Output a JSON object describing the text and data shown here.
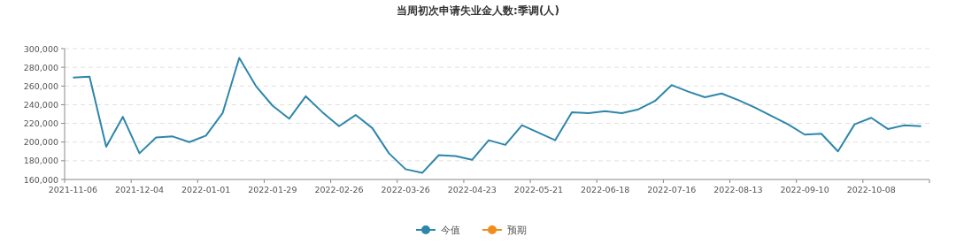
{
  "chart_data": {
    "type": "line",
    "title": "当周初次申请失业金人数:季调(人)",
    "categories": [
      "2021-11-06",
      null,
      null,
      null,
      "2021-12-04",
      null,
      null,
      null,
      "2022-01-01",
      null,
      null,
      null,
      "2022-01-29",
      null,
      null,
      null,
      "2022-02-26",
      null,
      null,
      null,
      "2022-03-26",
      null,
      null,
      null,
      "2022-04-23",
      null,
      null,
      null,
      "2022-05-21",
      null,
      null,
      null,
      "2022-06-18",
      null,
      null,
      null,
      "2022-07-16",
      null,
      null,
      null,
      "2022-08-13",
      null,
      null,
      null,
      "2022-09-10",
      null,
      null,
      null,
      "2022-10-08",
      null,
      null,
      null
    ],
    "series": [
      {
        "name": "今值",
        "color": "#2e86ab",
        "values": [
          269000,
          270000,
          195000,
          227000,
          188000,
          205000,
          206000,
          200000,
          207000,
          231000,
          290000,
          260000,
          239000,
          225000,
          249000,
          232000,
          217000,
          229000,
          215000,
          188000,
          171000,
          167000,
          186000,
          185000,
          181000,
          202000,
          197000,
          218000,
          210000,
          202000,
          232000,
          231000,
          233000,
          231000,
          235000,
          244000,
          261000,
          254000,
          248000,
          252000,
          245000,
          237000,
          228000,
          219000,
          208000,
          209000,
          190000,
          219000,
          226000,
          214000,
          218000,
          217000
        ]
      },
      {
        "name": "预期",
        "color": "#f28c1c",
        "values": [
          null,
          null,
          null,
          null,
          null,
          null,
          null,
          null,
          null,
          null,
          null,
          null,
          null,
          null,
          null,
          null,
          null,
          null,
          null,
          null,
          null,
          null,
          null,
          null,
          null,
          null,
          null,
          null,
          null,
          null,
          null,
          null,
          null,
          null,
          null,
          null,
          null,
          null,
          null,
          null,
          null,
          null,
          null,
          null,
          null,
          null,
          null,
          null,
          null,
          null,
          null,
          null
        ]
      }
    ],
    "ylim": [
      160000,
      300000
    ],
    "yticks": [
      {
        "value": 160000,
        "label": "160,000"
      },
      {
        "value": 180000,
        "label": "180,000"
      },
      {
        "value": 200000,
        "label": "200,000"
      },
      {
        "value": 220000,
        "label": "220,000"
      },
      {
        "value": 240000,
        "label": "240,000"
      },
      {
        "value": 260000,
        "label": "260,000"
      },
      {
        "value": 280000,
        "label": "280,000"
      },
      {
        "value": 300000,
        "label": "300,000"
      }
    ],
    "grid": "y",
    "legend": "bottom",
    "marker": "none",
    "line_style": "solid"
  }
}
